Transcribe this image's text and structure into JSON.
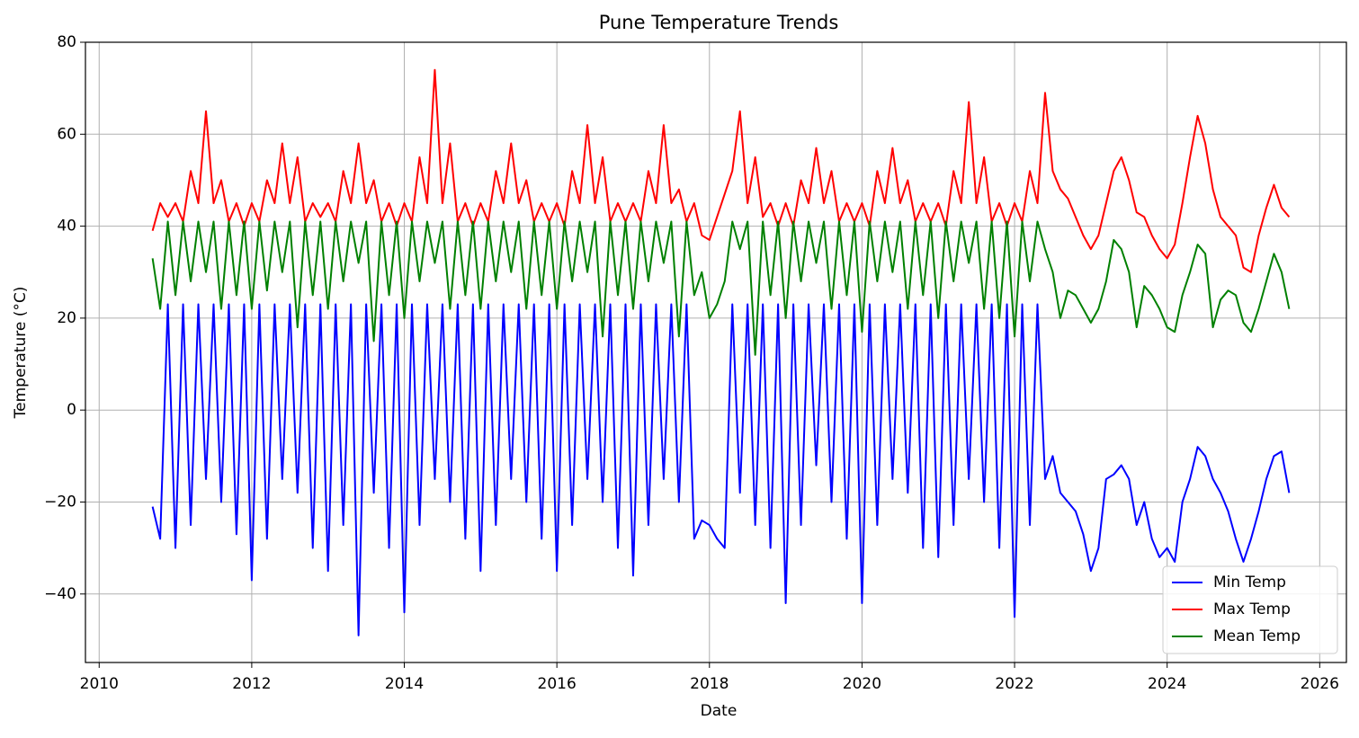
{
  "chart_data": {
    "type": "line",
    "title": "Pune Temperature Trends",
    "xlabel": "Date",
    "ylabel": "Temperature (°C)",
    "x": [
      2010.7,
      2010.8,
      2010.9,
      2011.0,
      2011.1,
      2011.2,
      2011.3,
      2011.4,
      2011.5,
      2011.6,
      2011.7,
      2011.8,
      2011.9,
      2012.0,
      2012.1,
      2012.2,
      2012.3,
      2012.4,
      2012.5,
      2012.6,
      2012.7,
      2012.8,
      2012.9,
      2013.0,
      2013.1,
      2013.2,
      2013.3,
      2013.4,
      2013.5,
      2013.6,
      2013.7,
      2013.8,
      2013.9,
      2014.0,
      2014.1,
      2014.2,
      2014.3,
      2014.4,
      2014.5,
      2014.6,
      2014.7,
      2014.8,
      2014.9,
      2015.0,
      2015.1,
      2015.2,
      2015.3,
      2015.4,
      2015.5,
      2015.6,
      2015.7,
      2015.8,
      2015.9,
      2016.0,
      2016.1,
      2016.2,
      2016.3,
      2016.4,
      2016.5,
      2016.6,
      2016.7,
      2016.8,
      2016.9,
      2017.0,
      2017.1,
      2017.2,
      2017.3,
      2017.4,
      2017.5,
      2017.6,
      2017.7,
      2017.8,
      2017.9,
      2018.0,
      2018.1,
      2018.2,
      2018.3,
      2018.4,
      2018.5,
      2018.6,
      2018.7,
      2018.8,
      2018.9,
      2019.0,
      2019.1,
      2019.2,
      2019.3,
      2019.4,
      2019.5,
      2019.6,
      2019.7,
      2019.8,
      2019.9,
      2020.0,
      2020.1,
      2020.2,
      2020.3,
      2020.4,
      2020.5,
      2020.6,
      2020.7,
      2020.8,
      2020.9,
      2021.0,
      2021.1,
      2021.2,
      2021.3,
      2021.4,
      2021.5,
      2021.6,
      2021.7,
      2021.8,
      2021.9,
      2022.0,
      2022.1,
      2022.2,
      2022.3,
      2022.4,
      2022.5,
      2022.6,
      2022.7,
      2022.8,
      2022.9,
      2023.0,
      2023.1,
      2023.2,
      2023.3,
      2023.4,
      2023.5,
      2023.6,
      2023.7,
      2023.8,
      2023.9,
      2024.0,
      2024.1,
      2024.2,
      2024.3,
      2024.4,
      2024.5,
      2024.6,
      2024.7,
      2024.8,
      2024.9,
      2025.0,
      2025.1,
      2025.2,
      2025.3,
      2025.4,
      2025.5,
      2025.6
    ],
    "series": [
      {
        "name": "Min Temp",
        "color": "#0000ff",
        "values": [
          -21,
          -28,
          23,
          -30,
          23,
          -25,
          23,
          -15,
          23,
          -20,
          23,
          -27,
          23,
          -37,
          23,
          -28,
          23,
          -15,
          23,
          -18,
          23,
          -30,
          23,
          -35,
          23,
          -25,
          23,
          -49,
          23,
          -18,
          23,
          -30,
          23,
          -44,
          23,
          -25,
          23,
          -15,
          23,
          -20,
          23,
          -28,
          23,
          -35,
          23,
          -25,
          23,
          -15,
          23,
          -20,
          23,
          -28,
          23,
          -35,
          23,
          -25,
          23,
          -15,
          23,
          -20,
          23,
          -30,
          23,
          -36,
          23,
          -25,
          23,
          -15,
          23,
          -20,
          23,
          -28,
          -24,
          -25,
          -28,
          -30,
          23,
          -18,
          23,
          -25,
          23,
          -30,
          23,
          -42,
          23,
          -25,
          23,
          -12,
          23,
          -20,
          23,
          -28,
          23,
          -42,
          23,
          -25,
          23,
          -15,
          23,
          -18,
          23,
          -30,
          23,
          -32,
          23,
          -25,
          23,
          -15,
          23,
          -20,
          23,
          -30,
          23,
          -45,
          23,
          -25,
          23,
          -15,
          -10,
          -18,
          -20,
          -22,
          -27,
          -35,
          -30,
          -15,
          -14,
          -12,
          -15,
          -25,
          -20,
          -28,
          -32,
          -30,
          -33,
          -20,
          -15,
          -8,
          -10,
          -15,
          -18,
          -22,
          -28,
          -33,
          -28,
          -22,
          -15,
          -10,
          -9,
          -18
        ]
      },
      {
        "name": "Max Temp",
        "color": "#ff0000",
        "values": [
          39,
          45,
          42,
          45,
          41,
          52,
          45,
          65,
          45,
          50,
          41,
          45,
          40,
          45,
          41,
          50,
          45,
          58,
          45,
          55,
          41,
          45,
          42,
          45,
          41,
          52,
          45,
          58,
          45,
          50,
          41,
          45,
          40,
          45,
          41,
          55,
          45,
          74,
          45,
          58,
          41,
          45,
          40,
          45,
          41,
          52,
          45,
          58,
          45,
          50,
          41,
          45,
          41,
          45,
          40,
          52,
          45,
          62,
          45,
          55,
          41,
          45,
          41,
          45,
          41,
          52,
          45,
          62,
          45,
          48,
          41,
          45,
          38,
          37,
          42,
          47,
          52,
          65,
          45,
          55,
          42,
          45,
          40,
          45,
          40,
          50,
          45,
          57,
          45,
          52,
          41,
          45,
          41,
          45,
          40,
          52,
          45,
          57,
          45,
          50,
          41,
          45,
          41,
          45,
          40,
          52,
          45,
          67,
          45,
          55,
          41,
          45,
          40,
          45,
          41,
          52,
          45,
          69,
          52,
          48,
          46,
          42,
          38,
          35,
          38,
          45,
          52,
          55,
          50,
          43,
          42,
          38,
          35,
          33,
          36,
          45,
          55,
          64,
          58,
          48,
          42,
          40,
          38,
          31,
          30,
          38,
          44,
          49,
          44,
          42
        ]
      },
      {
        "name": "Mean Temp",
        "color": "#008000",
        "values": [
          33,
          22,
          41,
          25,
          41,
          28,
          41,
          30,
          41,
          22,
          41,
          25,
          41,
          22,
          41,
          26,
          41,
          30,
          41,
          18,
          41,
          25,
          41,
          22,
          41,
          28,
          41,
          32,
          41,
          15,
          41,
          25,
          41,
          20,
          41,
          28,
          41,
          32,
          41,
          22,
          41,
          25,
          41,
          22,
          41,
          28,
          41,
          30,
          41,
          22,
          41,
          25,
          41,
          22,
          41,
          28,
          41,
          30,
          41,
          16,
          41,
          25,
          41,
          22,
          41,
          28,
          41,
          32,
          41,
          16,
          41,
          25,
          30,
          20,
          23,
          28,
          41,
          35,
          41,
          12,
          41,
          25,
          41,
          20,
          41,
          28,
          41,
          32,
          41,
          22,
          41,
          25,
          41,
          17,
          41,
          28,
          41,
          30,
          41,
          22,
          41,
          25,
          41,
          20,
          41,
          28,
          41,
          32,
          41,
          22,
          41,
          20,
          41,
          16,
          41,
          28,
          41,
          35,
          30,
          20,
          26,
          25,
          22,
          19,
          22,
          28,
          37,
          35,
          30,
          18,
          27,
          25,
          22,
          18,
          17,
          25,
          30,
          36,
          34,
          18,
          24,
          26,
          25,
          19,
          17,
          22,
          28,
          34,
          30,
          22
        ]
      }
    ],
    "xlim": [
      2009.82,
      2026.35
    ],
    "xticks": [
      2010,
      2012,
      2014,
      2016,
      2018,
      2020,
      2022,
      2024,
      2026
    ],
    "ylim": [
      -54.9,
      80
    ],
    "yticks": [
      {
        "value": -40,
        "label": "−40"
      },
      {
        "value": -20,
        "label": "−20"
      },
      0,
      20,
      40,
      60,
      80
    ],
    "grid": true,
    "legend": "lower right"
  }
}
